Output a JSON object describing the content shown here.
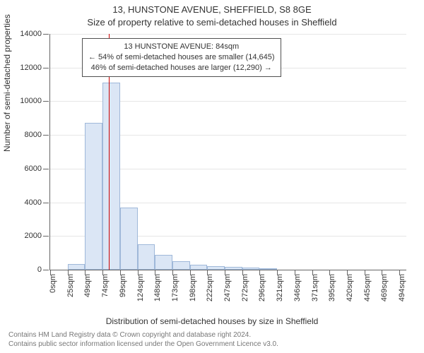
{
  "title_line1": "13, HUNSTONE AVENUE, SHEFFIELD, S8 8GE",
  "title_line2": "Size of property relative to semi-detached houses in Sheffield",
  "y_axis_title": "Number of semi-detached properties",
  "x_axis_title": "Distribution of semi-detached houses by size in Sheffield",
  "footer_line1": "Contains HM Land Registry data © Crown copyright and database right 2024.",
  "footer_line2": "Contains public sector information licensed under the Open Government Licence v3.0.",
  "info_box": {
    "line1": "13 HUNSTONE AVENUE: 84sqm",
    "line2": "← 54% of semi-detached houses are smaller (14,645)",
    "line3": "46% of semi-detached houses are larger (12,290) →"
  },
  "chart": {
    "type": "histogram",
    "background_color": "#ffffff",
    "grid_color": "#e6e6e6",
    "axis_color": "#666666",
    "bar_fill": "#dbe6f5",
    "bar_stroke": "#9fb8d9",
    "marker_color": "#cc0000",
    "marker_value": 84,
    "x_min": 0,
    "x_max": 510,
    "y_min": 0,
    "y_max": 14000,
    "y_ticks": [
      0,
      2000,
      4000,
      6000,
      8000,
      10000,
      12000,
      14000
    ],
    "x_tick_step": 25,
    "x_tick_labels": [
      "0sqm",
      "25sqm",
      "49sqm",
      "74sqm",
      "99sqm",
      "124sqm",
      "148sqm",
      "173sqm",
      "198sqm",
      "222sqm",
      "247sqm",
      "272sqm",
      "296sqm",
      "321sqm",
      "346sqm",
      "371sqm",
      "395sqm",
      "420sqm",
      "445sqm",
      "469sqm",
      "494sqm"
    ],
    "bin_width": 25,
    "values": [
      0,
      350,
      8700,
      11100,
      3700,
      1500,
      900,
      500,
      300,
      200,
      150,
      120,
      80,
      0,
      0,
      0,
      0,
      0,
      0,
      0
    ],
    "title_fontsize": 13,
    "axis_title_fontsize": 12,
    "tick_fontsize": 11,
    "info_fontsize": 11,
    "footer_fontsize": 10,
    "footer_color": "#777777"
  }
}
